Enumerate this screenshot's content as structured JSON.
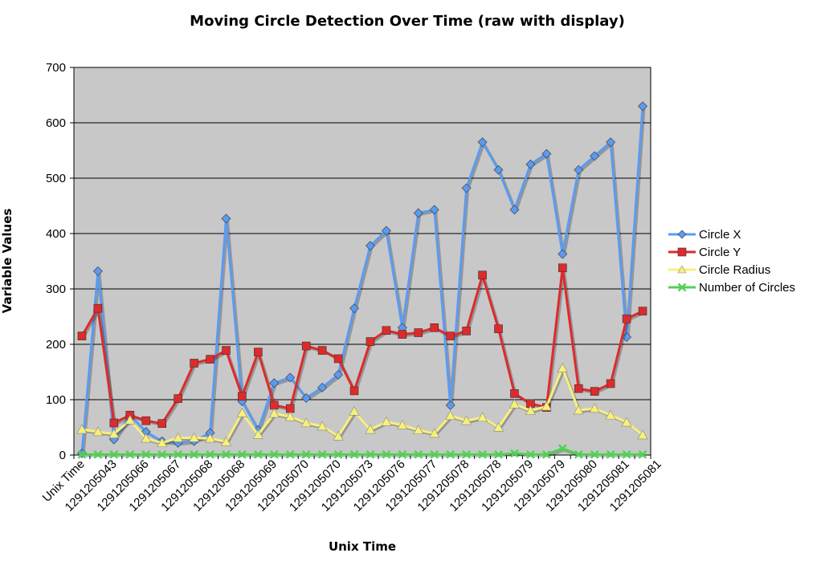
{
  "chart_data": {
    "type": "line",
    "title": "Moving Circle Detection Over Time (raw with display)",
    "xlabel": "Unix Time",
    "ylabel": "Variable Values",
    "ylim": [
      0,
      700
    ],
    "yticks": [
      0,
      100,
      200,
      300,
      400,
      500,
      600,
      700
    ],
    "grid": true,
    "legend_position": "right",
    "plot_background": "#c8c8c8",
    "x_tick_labels": [
      "Unix Time",
      "1291205043",
      "1291205066",
      "1291205067",
      "1291205068",
      "1291205068",
      "1291205069",
      "1291205070",
      "1291205070",
      "1291205073",
      "1291205076",
      "1291205077",
      "1291205078",
      "1291205078",
      "1291205079",
      "1291205079",
      "1291205080",
      "1291205081",
      "1291205081"
    ],
    "series": [
      {
        "name": "Circle X",
        "color": "#5b9bef",
        "marker": "diamond",
        "values": [
          3,
          332,
          28,
          72,
          42,
          25,
          22,
          25,
          40,
          427,
          97,
          45,
          130,
          140,
          103,
          122,
          145,
          265,
          378,
          405,
          230,
          437,
          443,
          90,
          482,
          565,
          515,
          443,
          525,
          544,
          363,
          515,
          540,
          565,
          213,
          630
        ]
      },
      {
        "name": "Circle Y",
        "color": "#dd2b2b",
        "marker": "square",
        "values": [
          215,
          265,
          58,
          72,
          62,
          57,
          102,
          166,
          173,
          189,
          106,
          186,
          90,
          84,
          197,
          189,
          174,
          116,
          205,
          225,
          218,
          221,
          230,
          215,
          224,
          325,
          228,
          111,
          93,
          86,
          338,
          120,
          115,
          129,
          246,
          260
        ]
      },
      {
        "name": "Circle Radius",
        "color": "#f7f07a",
        "marker": "triangle",
        "values": [
          46,
          42,
          38,
          63,
          30,
          22,
          31,
          31,
          30,
          24,
          76,
          37,
          75,
          69,
          58,
          52,
          34,
          79,
          46,
          60,
          54,
          45,
          39,
          71,
          62,
          68,
          50,
          92,
          80,
          88,
          157,
          81,
          84,
          72,
          59,
          36
        ]
      },
      {
        "name": "Number of Circles",
        "color": "#52cf55",
        "marker": "x",
        "values": [
          1,
          1,
          1,
          1,
          1,
          1,
          1,
          1,
          1,
          1,
          1,
          1,
          1,
          1,
          1,
          1,
          1,
          1,
          1,
          1,
          1,
          1,
          1,
          1,
          1,
          1,
          1,
          3,
          1,
          1,
          12,
          1,
          1,
          1,
          1,
          1
        ]
      }
    ]
  }
}
